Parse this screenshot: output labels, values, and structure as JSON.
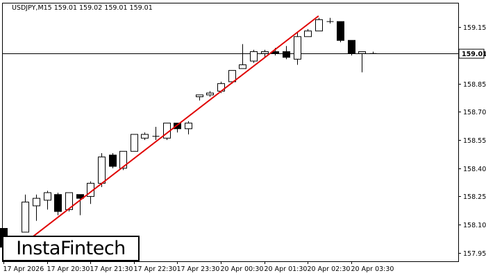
{
  "chart_data": {
    "type": "candlestick",
    "info": "USDJPY,M15  159.01 159.02 159.01 159.01",
    "symbol": "USDJPY",
    "timeframe": "M15",
    "price_label": "159.01",
    "ylim": [
      157.905,
      159.28
    ],
    "y_ticks": [
      "159.15",
      "158.85",
      "158.70",
      "158.55",
      "158.40",
      "158.25",
      "158.10",
      "157.95"
    ],
    "x_ticks": [
      "17 Apr 2026",
      "17 Apr 20:30",
      "17 Apr 21:30",
      "17 Apr 22:30",
      "17 Apr 23:30",
      "20 Apr 00:30",
      "20 Apr 01:30",
      "20 Apr 02:30",
      "20 Apr 03:30"
    ],
    "current_price": 159.01,
    "trendline": {
      "from": {
        "bar": 1,
        "price": 157.96
      },
      "to": {
        "bar": 29,
        "price": 159.21
      }
    },
    "candles": [
      {
        "o": 158.08,
        "h": 158.08,
        "l": 157.95,
        "c": 157.98
      },
      {
        "o": 158.02,
        "h": 158.03,
        "l": 157.96,
        "c": 158.03
      },
      {
        "o": 158.06,
        "h": 158.26,
        "l": 158.06,
        "c": 158.22
      },
      {
        "o": 158.2,
        "h": 158.26,
        "l": 158.12,
        "c": 158.24
      },
      {
        "o": 158.23,
        "h": 158.28,
        "l": 158.18,
        "c": 158.27
      },
      {
        "o": 158.26,
        "h": 158.27,
        "l": 158.15,
        "c": 158.17
      },
      {
        "o": 158.18,
        "h": 158.27,
        "l": 158.17,
        "c": 158.27
      },
      {
        "o": 158.26,
        "h": 158.26,
        "l": 158.15,
        "c": 158.24
      },
      {
        "o": 158.25,
        "h": 158.33,
        "l": 158.21,
        "c": 158.32
      },
      {
        "o": 158.32,
        "h": 158.48,
        "l": 158.3,
        "c": 158.46
      },
      {
        "o": 158.47,
        "h": 158.48,
        "l": 158.4,
        "c": 158.41
      },
      {
        "o": 158.4,
        "h": 158.49,
        "l": 158.39,
        "c": 158.49
      },
      {
        "o": 158.49,
        "h": 158.58,
        "l": 158.49,
        "c": 158.58
      },
      {
        "o": 158.56,
        "h": 158.59,
        "l": 158.55,
        "c": 158.58
      },
      {
        "o": 158.57,
        "h": 158.62,
        "l": 158.55,
        "c": 158.57
      },
      {
        "o": 158.56,
        "h": 158.64,
        "l": 158.55,
        "c": 158.64
      },
      {
        "o": 158.64,
        "h": 158.64,
        "l": 158.59,
        "c": 158.61
      },
      {
        "o": 158.61,
        "h": 158.65,
        "l": 158.58,
        "c": 158.64
      },
      {
        "o": 158.78,
        "h": 158.79,
        "l": 158.76,
        "c": 158.79
      },
      {
        "o": 158.79,
        "h": 158.81,
        "l": 158.78,
        "c": 158.8
      },
      {
        "o": 158.81,
        "h": 158.86,
        "l": 158.8,
        "c": 158.85
      },
      {
        "o": 158.86,
        "h": 158.92,
        "l": 158.85,
        "c": 158.92
      },
      {
        "o": 158.93,
        "h": 159.06,
        "l": 158.93,
        "c": 158.95
      },
      {
        "o": 158.97,
        "h": 159.03,
        "l": 158.96,
        "c": 159.02
      },
      {
        "o": 159.01,
        "h": 159.03,
        "l": 158.99,
        "c": 159.02
      },
      {
        "o": 159.02,
        "h": 159.04,
        "l": 159.0,
        "c": 159.01
      },
      {
        "o": 159.02,
        "h": 159.05,
        "l": 158.98,
        "c": 158.99
      },
      {
        "o": 158.98,
        "h": 159.12,
        "l": 158.95,
        "c": 159.1
      },
      {
        "o": 159.1,
        "h": 159.14,
        "l": 159.1,
        "c": 159.13
      },
      {
        "o": 159.13,
        "h": 159.2,
        "l": 159.13,
        "c": 159.19
      },
      {
        "o": 159.18,
        "h": 159.2,
        "l": 159.17,
        "c": 159.18
      },
      {
        "o": 159.18,
        "h": 159.18,
        "l": 159.07,
        "c": 159.08
      },
      {
        "o": 159.08,
        "h": 159.08,
        "l": 159.0,
        "c": 159.01
      },
      {
        "o": 159.01,
        "h": 159.02,
        "l": 158.91,
        "c": 159.02
      },
      {
        "o": 159.01,
        "h": 159.02,
        "l": 159.01,
        "c": 159.01
      }
    ],
    "colors": {
      "bull": "#ffffff",
      "bear": "#000000",
      "wick": "#000000",
      "trendline": "#e00000",
      "background": "#ffffff",
      "axis": "#000000"
    }
  },
  "watermark": {
    "brand": "InstaFintech"
  }
}
